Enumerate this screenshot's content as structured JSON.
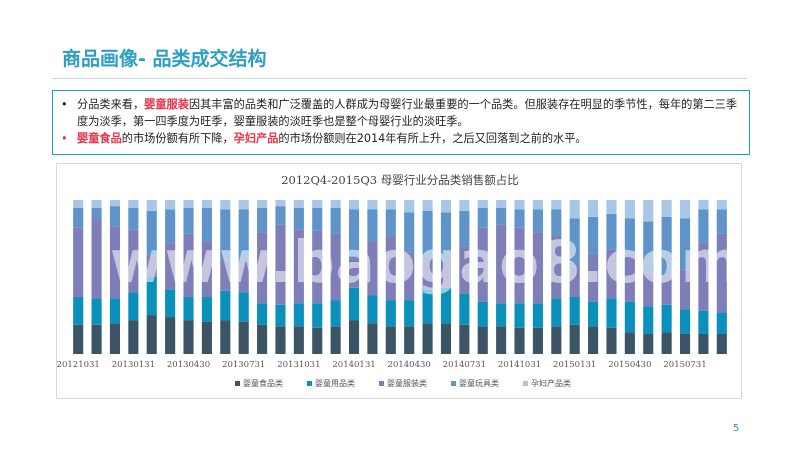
{
  "page": {
    "title": "商品画像- 品类成交结构",
    "page_number": "5",
    "watermark": "www.baogao8.com"
  },
  "notes": [
    {
      "bullet": "•",
      "parts": [
        {
          "text": "分品类来看，",
          "hl": false
        },
        {
          "text": "婴童服装",
          "hl": true
        },
        {
          "text": "因其丰富的品类和广泛覆盖的人群成为母婴行业最重要的一个品类。但服装存在明显的季节性，每年的第二三季度为淡季，第一四季度为旺季，婴童服装的淡旺季也是整个母婴行业的淡旺季。",
          "hl": false
        }
      ]
    },
    {
      "bullet": "•",
      "parts": [
        {
          "text": "婴童食品",
          "hl": true
        },
        {
          "text": "的市场份额有所下降，",
          "hl": false
        },
        {
          "text": "孕妇产品",
          "hl": true
        },
        {
          "text": "的市场份额则在2014年有所上升，之后又回落到之前的水平。",
          "hl": false
        }
      ]
    }
  ],
  "colors": {
    "title": "#2e9fc4",
    "highlight": "#e8334a",
    "border": "#1f9ec4"
  },
  "chart_data": {
    "type": "bar",
    "stacked": true,
    "normalized": true,
    "title": "2012Q4-2015Q3  母婴行业分品类销售额占比",
    "ylim": [
      0,
      1
    ],
    "x": [
      "20121031",
      "20121130",
      "20121231",
      "20130131",
      "20130228",
      "20130331",
      "20130430",
      "20130531",
      "20130630",
      "20130731",
      "20130831",
      "20130930",
      "20131031",
      "20131130",
      "20131231",
      "20140131",
      "20140228",
      "20140331",
      "20140430",
      "20140531",
      "20140630",
      "20140731",
      "20140831",
      "20140930",
      "20141031",
      "20141130",
      "20141231",
      "20150131",
      "20150228",
      "20150331",
      "20150430",
      "20150531",
      "20150630",
      "20150731",
      "20150831",
      "20150930"
    ],
    "x_tick_labels": [
      "20121031",
      "20130131",
      "20130430",
      "20130731",
      "20131031",
      "20140131",
      "20140430",
      "20140731",
      "20141031",
      "20150131",
      "20150430",
      "20150731"
    ],
    "legend_position": "bottom",
    "series": [
      {
        "name": "婴童食品类",
        "color": "#3c5566",
        "values": [
          0.19,
          0.19,
          0.2,
          0.22,
          0.25,
          0.24,
          0.22,
          0.21,
          0.22,
          0.21,
          0.19,
          0.18,
          0.18,
          0.17,
          0.18,
          0.22,
          0.2,
          0.18,
          0.18,
          0.2,
          0.2,
          0.19,
          0.18,
          0.18,
          0.17,
          0.17,
          0.18,
          0.19,
          0.18,
          0.17,
          0.14,
          0.13,
          0.14,
          0.13,
          0.13,
          0.13
        ]
      },
      {
        "name": "婴童用品类",
        "color": "#0b8fbb",
        "values": [
          0.18,
          0.17,
          0.16,
          0.18,
          0.25,
          0.18,
          0.15,
          0.16,
          0.19,
          0.19,
          0.14,
          0.14,
          0.15,
          0.16,
          0.17,
          0.21,
          0.18,
          0.17,
          0.17,
          0.22,
          0.23,
          0.2,
          0.16,
          0.15,
          0.16,
          0.16,
          0.18,
          0.18,
          0.16,
          0.19,
          0.2,
          0.18,
          0.18,
          0.16,
          0.15,
          0.14
        ]
      },
      {
        "name": "婴童服装类",
        "color": "#7e7fb9",
        "values": [
          0.45,
          0.52,
          0.47,
          0.41,
          0.14,
          0.3,
          0.41,
          0.36,
          0.2,
          0.2,
          0.46,
          0.52,
          0.48,
          0.47,
          0.43,
          0.19,
          0.35,
          0.41,
          0.31,
          0.2,
          0.17,
          0.31,
          0.48,
          0.51,
          0.49,
          0.46,
          0.41,
          0.2,
          0.31,
          0.32,
          0.31,
          0.21,
          0.18,
          0.26,
          0.44,
          0.51
        ]
      },
      {
        "name": "婴童玩具类",
        "color": "#5e94c9",
        "values": [
          0.13,
          0.07,
          0.13,
          0.14,
          0.29,
          0.22,
          0.17,
          0.22,
          0.33,
          0.34,
          0.16,
          0.12,
          0.14,
          0.15,
          0.17,
          0.32,
          0.21,
          0.18,
          0.26,
          0.31,
          0.32,
          0.23,
          0.13,
          0.11,
          0.12,
          0.15,
          0.17,
          0.31,
          0.24,
          0.23,
          0.23,
          0.34,
          0.39,
          0.33,
          0.22,
          0.16
        ]
      },
      {
        "name": "孕妇产品类",
        "color": "#a8c7e6",
        "values": [
          0.05,
          0.05,
          0.04,
          0.05,
          0.07,
          0.06,
          0.05,
          0.05,
          0.06,
          0.06,
          0.05,
          0.04,
          0.05,
          0.05,
          0.05,
          0.06,
          0.06,
          0.06,
          0.08,
          0.07,
          0.08,
          0.07,
          0.05,
          0.05,
          0.06,
          0.06,
          0.06,
          0.12,
          0.11,
          0.09,
          0.12,
          0.14,
          0.11,
          0.12,
          0.06,
          0.06
        ]
      }
    ]
  }
}
